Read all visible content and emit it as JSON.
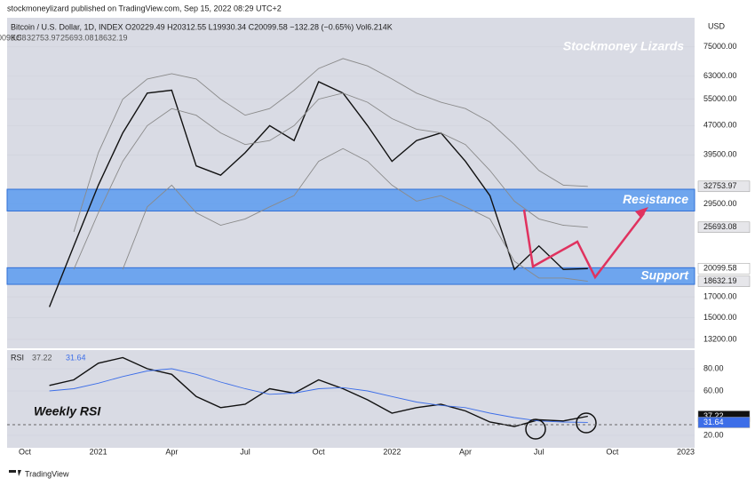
{
  "header": {
    "published": "stockmoneylizard published on TradingView.com, Sep 15, 2022 08:29 UTC+2",
    "symbol": "Bitcoin / U.S. Dollar, 1D, INDEX  O20229.49  H20312.55  L19930.34  C20099.58  −132.28 (−0.65%)  Vol6.214K",
    "brand": "TradingView"
  },
  "chart_data": [
    {
      "type": "line",
      "legend": "KC",
      "axis_label": "USD",
      "log_scale": true,
      "annotations": [
        "Stockmoney Lizards",
        "Weekly RSI"
      ],
      "zones": [
        {
          "label": "Resistance",
          "from": 28300,
          "to": 32200,
          "color": "#5b9bf0"
        },
        {
          "label": "Support",
          "from": 18300,
          "to": 20200,
          "color": "#5b9bf0"
        }
      ],
      "x": [
        "2020-11",
        "2020-12",
        "2021-01",
        "2021-02",
        "2021-03",
        "2021-04",
        "2021-05",
        "2021-06",
        "2021-07",
        "2021-08",
        "2021-09",
        "2021-10",
        "2021-11",
        "2021-12",
        "2022-01",
        "2022-02",
        "2022-03",
        "2022-04",
        "2022-05",
        "2022-06",
        "2022-07",
        "2022-08",
        "2022-09"
      ],
      "series": [
        {
          "color": "#111111",
          "values": [
            16000,
            23000,
            33000,
            45000,
            57000,
            58000,
            37000,
            35000,
            40000,
            47000,
            43000,
            61000,
            57000,
            47000,
            38000,
            43000,
            45000,
            38000,
            31000,
            20000,
            23000,
            20000,
            20099.58
          ]
        },
        {
          "color": "#8a8a8a",
          "values": [
            null,
            25000,
            40000,
            55000,
            62000,
            64000,
            62000,
            55000,
            50000,
            52000,
            58000,
            66000,
            70000,
            67000,
            62000,
            57000,
            54000,
            52000,
            48000,
            42000,
            36000,
            33000,
            32753.97
          ]
        },
        {
          "color": "#8a8a8a",
          "values": [
            null,
            20000,
            28000,
            38000,
            47000,
            52000,
            50000,
            45000,
            42000,
            43000,
            47000,
            55000,
            57000,
            54000,
            49000,
            46000,
            45000,
            42000,
            36000,
            30000,
            27000,
            26000,
            25693.08
          ]
        },
        {
          "color": "#8a8a8a",
          "values": [
            null,
            null,
            null,
            20000,
            29000,
            33000,
            28000,
            26000,
            27000,
            29000,
            31000,
            38000,
            41000,
            38000,
            33000,
            30000,
            31000,
            29000,
            27000,
            21000,
            19000,
            19000,
            18632.19
          ]
        }
      ],
      "xlim": [
        "2020-10",
        "2023-01"
      ],
      "xticks": [
        {
          "value": "2020-10",
          "label": "Oct"
        },
        {
          "value": "2021-01",
          "label": "2021"
        },
        {
          "value": "2021-04",
          "label": "Apr"
        },
        {
          "value": "2021-07",
          "label": "Jul"
        },
        {
          "value": "2021-10",
          "label": "Oct"
        },
        {
          "value": "2022-01",
          "label": "2022"
        },
        {
          "value": "2022-04",
          "label": "Apr"
        },
        {
          "value": "2022-07",
          "label": "Jul"
        },
        {
          "value": "2022-10",
          "label": "Oct"
        },
        {
          "value": "2023-01",
          "label": "2023"
        }
      ],
      "ylim": [
        12650,
        89200
      ],
      "yticks": [
        {
          "value": 75000,
          "label": "75000.00"
        },
        {
          "value": 63000,
          "label": "63000.00"
        },
        {
          "value": 55000,
          "label": "55000.00"
        },
        {
          "value": 47000,
          "label": "47000.00"
        },
        {
          "value": 39500,
          "label": "39500.00"
        },
        {
          "value": 29500,
          "label": "29500.00"
        },
        {
          "value": 17000,
          "label": "17000.00"
        },
        {
          "value": 15000,
          "label": "15000.00"
        },
        {
          "value": 13200,
          "label": "13200.00"
        }
      ]
    },
    {
      "type": "line",
      "legend": "RSI",
      "x": [
        "2020-11",
        "2020-12",
        "2021-01",
        "2021-02",
        "2021-03",
        "2021-04",
        "2021-05",
        "2021-06",
        "2021-07",
        "2021-08",
        "2021-09",
        "2021-10",
        "2021-11",
        "2021-12",
        "2022-01",
        "2022-02",
        "2022-03",
        "2022-04",
        "2022-05",
        "2022-06",
        "2022-07",
        "2022-08",
        "2022-09"
      ],
      "series": [
        {
          "color": "#111111",
          "values": [
            65,
            70,
            85,
            90,
            80,
            75,
            55,
            45,
            48,
            62,
            58,
            70,
            62,
            52,
            40,
            45,
            48,
            42,
            32,
            28,
            34,
            33,
            37.22
          ]
        },
        {
          "color": "#3d6ee8",
          "values": [
            60,
            62,
            67,
            73,
            78,
            80,
            75,
            68,
            62,
            57,
            58,
            62,
            63,
            60,
            55,
            50,
            47,
            45,
            40,
            36,
            33,
            32,
            31.64
          ]
        }
      ],
      "xlim": [
        "2020-10",
        "2023-01"
      ],
      "ylim": [
        8.8,
        96.8
      ],
      "yticks": [
        {
          "value": 80,
          "label": "80.00"
        },
        {
          "value": 60,
          "label": "60.00"
        },
        {
          "value": 20,
          "label": "20.00"
        }
      ]
    }
  ]
}
